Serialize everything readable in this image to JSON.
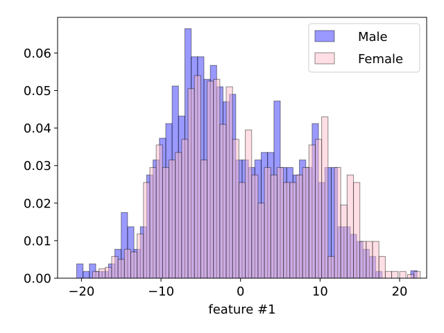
{
  "chart_data": {
    "type": "bar",
    "subtype": "overlapping-histogram",
    "xlabel": "feature #1",
    "ylabel": "",
    "xlim": [
      -23,
      23.4
    ],
    "ylim": [
      0,
      0.0695
    ],
    "xticks": [
      -20,
      -10,
      0,
      10,
      20
    ],
    "xtick_labels": [
      "−20",
      "−10",
      "0",
      "10",
      "20"
    ],
    "yticks": [
      0,
      0.01,
      0.02,
      0.03,
      0.04,
      0.05,
      0.06
    ],
    "ytick_labels": [
      "0.00",
      "0.01",
      "0.02",
      "0.03",
      "0.04",
      "0.05",
      "0.06"
    ],
    "grid": false,
    "legend_position": "top-right",
    "series": [
      {
        "name": "Male",
        "color": "#0000ff",
        "alpha": 0.4,
        "bins": [
          [
            -20.6,
            -19.8,
            0.0038
          ],
          [
            -19.8,
            -19.0,
            0.0018
          ],
          [
            -19.0,
            -18.2,
            0.0038
          ],
          [
            -18.2,
            -17.4,
            0.0018
          ],
          [
            -17.4,
            -16.6,
            0.0018
          ],
          [
            -16.6,
            -15.8,
            0.0038
          ],
          [
            -15.8,
            -15.0,
            0.0077
          ],
          [
            -15.0,
            -14.2,
            0.0175
          ],
          [
            -14.2,
            -13.4,
            0.0137
          ],
          [
            -13.4,
            -12.6,
            0.0077
          ],
          [
            -12.6,
            -11.8,
            0.0137
          ],
          [
            -11.8,
            -11.0,
            0.0275
          ],
          [
            -11.0,
            -10.2,
            0.0315
          ],
          [
            -10.2,
            -9.4,
            0.0373
          ],
          [
            -9.4,
            -8.6,
            0.0412
          ],
          [
            -8.6,
            -7.8,
            0.0512
          ],
          [
            -7.8,
            -7.0,
            0.0432
          ],
          [
            -7.0,
            -6.2,
            0.0665
          ],
          [
            -6.2,
            -5.4,
            0.059
          ],
          [
            -5.4,
            -4.6,
            0.059
          ],
          [
            -4.6,
            -3.8,
            0.053
          ],
          [
            -3.8,
            -3.0,
            0.0567
          ],
          [
            -3.0,
            -2.2,
            0.051
          ],
          [
            -2.2,
            -1.4,
            0.047
          ],
          [
            -1.4,
            -0.6,
            0.049
          ],
          [
            -0.6,
            0.2,
            0.0315
          ],
          [
            0.2,
            1.0,
            0.0315
          ],
          [
            1.0,
            1.8,
            0.0295
          ],
          [
            1.8,
            2.6,
            0.0315
          ],
          [
            2.6,
            3.4,
            0.0335
          ],
          [
            3.4,
            4.2,
            0.0335
          ],
          [
            4.2,
            5.0,
            0.0472
          ],
          [
            5.0,
            5.8,
            0.0295
          ],
          [
            5.8,
            6.6,
            0.0295
          ],
          [
            6.6,
            7.4,
            0.0275
          ],
          [
            7.4,
            8.2,
            0.0315
          ],
          [
            8.2,
            9.0,
            0.0295
          ],
          [
            9.0,
            9.8,
            0.0412
          ],
          [
            9.8,
            10.6,
            0.0255
          ],
          [
            10.6,
            11.4,
            0.0295
          ],
          [
            11.4,
            12.2,
            0.0295
          ],
          [
            12.2,
            13.0,
            0.0137
          ],
          [
            13.0,
            13.8,
            0.0137
          ],
          [
            13.8,
            14.6,
            0.0117
          ],
          [
            14.6,
            15.4,
            0.0098
          ],
          [
            15.4,
            16.2,
            0.0077
          ],
          [
            16.2,
            17.0,
            0.0058
          ],
          [
            17.0,
            17.8,
            0.0018
          ],
          [
            21.4,
            22.2,
            0.002
          ]
        ]
      },
      {
        "name": "Female",
        "color": "#ffc0cb",
        "alpha": 0.5,
        "bins": [
          [
            -18.6,
            -17.8,
            0.0018
          ],
          [
            -17.8,
            -17.0,
            0.0025
          ],
          [
            -17.0,
            -16.2,
            0.0029
          ],
          [
            -16.2,
            -15.4,
            0.0058
          ],
          [
            -15.4,
            -14.6,
            0.005
          ],
          [
            -14.6,
            -13.8,
            0.0077
          ],
          [
            -13.8,
            -13.0,
            0.007
          ],
          [
            -13.0,
            -12.2,
            0.0118
          ],
          [
            -12.2,
            -11.4,
            0.0255
          ],
          [
            -11.4,
            -10.6,
            0.0295
          ],
          [
            -10.6,
            -9.8,
            0.0355
          ],
          [
            -9.8,
            -9.0,
            0.0295
          ],
          [
            -9.0,
            -8.2,
            0.0315
          ],
          [
            -8.2,
            -7.4,
            0.0335
          ],
          [
            -7.4,
            -6.6,
            0.037
          ],
          [
            -6.6,
            -5.8,
            0.0505
          ],
          [
            -5.8,
            -5.0,
            0.054
          ],
          [
            -5.0,
            -4.2,
            0.0315
          ],
          [
            -4.2,
            -3.4,
            0.0525
          ],
          [
            -3.4,
            -2.6,
            0.053
          ],
          [
            -2.6,
            -1.8,
            0.041
          ],
          [
            -1.8,
            -1.0,
            0.051
          ],
          [
            -1.0,
            -0.2,
            0.037
          ],
          [
            -0.2,
            0.6,
            0.0255
          ],
          [
            0.6,
            1.4,
            0.0395
          ],
          [
            1.4,
            2.2,
            0.0275
          ],
          [
            2.2,
            3.0,
            0.02
          ],
          [
            3.0,
            3.8,
            0.0295
          ],
          [
            3.8,
            4.6,
            0.0275
          ],
          [
            4.6,
            5.4,
            0.0295
          ],
          [
            5.4,
            6.2,
            0.0255
          ],
          [
            6.2,
            7.0,
            0.0255
          ],
          [
            7.0,
            7.8,
            0.0275
          ],
          [
            7.8,
            8.6,
            0.0295
          ],
          [
            8.6,
            9.4,
            0.0355
          ],
          [
            9.4,
            10.2,
            0.037
          ],
          [
            10.2,
            11.0,
            0.043
          ],
          [
            11.0,
            11.8,
            0.0058
          ],
          [
            11.8,
            12.6,
            0.0295
          ],
          [
            12.6,
            13.4,
            0.0195
          ],
          [
            13.4,
            14.2,
            0.0275
          ],
          [
            14.2,
            15.0,
            0.0255
          ],
          [
            15.0,
            15.8,
            0.0098
          ],
          [
            15.8,
            16.6,
            0.0098
          ],
          [
            16.6,
            17.4,
            0.0098
          ],
          [
            17.4,
            18.2,
            0.0058
          ],
          [
            18.2,
            19.0,
            0.0018
          ],
          [
            19.0,
            19.8,
            0.0018
          ],
          [
            20.0,
            20.8,
            0.0018
          ],
          [
            21.0,
            21.8,
            0.001
          ],
          [
            21.8,
            22.6,
            0.0018
          ]
        ]
      }
    ]
  }
}
